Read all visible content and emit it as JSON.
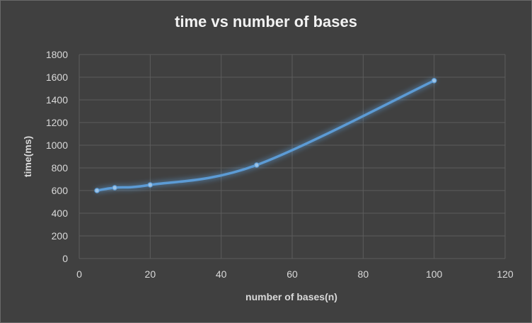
{
  "chart_data": {
    "type": "scatter",
    "title": "time vs number of bases",
    "xlabel": "number of bases(n)",
    "ylabel": "time(ms)",
    "xlim": [
      0,
      120
    ],
    "ylim": [
      0,
      1800
    ],
    "x_ticks": [
      0,
      20,
      40,
      60,
      80,
      100,
      120
    ],
    "y_ticks": [
      0,
      200,
      400,
      600,
      800,
      1000,
      1200,
      1400,
      1600,
      1800
    ],
    "grid": true,
    "series": [
      {
        "x": [
          5,
          10,
          20,
          50,
          100
        ],
        "y": [
          600,
          625,
          650,
          825,
          1570
        ],
        "color": "#5b9bd5",
        "style": "smooth line with markers"
      }
    ]
  }
}
